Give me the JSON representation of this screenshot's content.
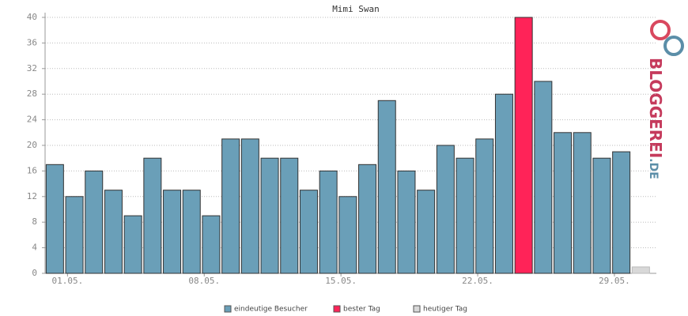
{
  "chart_data": {
    "type": "bar",
    "title": "Mimi Swan",
    "categories": [
      "01.05.",
      null,
      null,
      null,
      null,
      null,
      null,
      "08.05.",
      null,
      null,
      null,
      null,
      null,
      null,
      "15.05.",
      null,
      null,
      null,
      null,
      null,
      null,
      "22.05.",
      null,
      null,
      null,
      null,
      null,
      null,
      "29.05.",
      null,
      null
    ],
    "series": [
      {
        "name": "eindeutige Besucher",
        "color": "#6a9fb8",
        "values": [
          17,
          12,
          16,
          13,
          9,
          18,
          13,
          13,
          9,
          21,
          21,
          18,
          18,
          13,
          16,
          12,
          17,
          27,
          16,
          13,
          20,
          18,
          21,
          28,
          null,
          30,
          22,
          22,
          18,
          19,
          null
        ]
      },
      {
        "name": "bester Tag",
        "color": "#ff2358",
        "values": [
          null,
          null,
          null,
          null,
          null,
          null,
          null,
          null,
          null,
          null,
          null,
          null,
          null,
          null,
          null,
          null,
          null,
          null,
          null,
          null,
          null,
          null,
          null,
          null,
          40,
          null,
          null,
          null,
          null,
          null,
          null
        ]
      },
      {
        "name": "heutiger Tag",
        "color": "#d8d8d8",
        "values": [
          null,
          null,
          null,
          null,
          null,
          null,
          null,
          null,
          null,
          null,
          null,
          null,
          null,
          null,
          null,
          null,
          null,
          null,
          null,
          null,
          null,
          null,
          null,
          null,
          null,
          null,
          null,
          null,
          null,
          null,
          1
        ]
      }
    ],
    "ylim": [
      0,
      40
    ],
    "yticks": [
      0,
      4,
      8,
      12,
      16,
      20,
      24,
      28,
      32,
      36,
      40
    ],
    "grid": true,
    "logo": {
      "name": "BLOGGEREI",
      "suffix": ".DE"
    }
  }
}
